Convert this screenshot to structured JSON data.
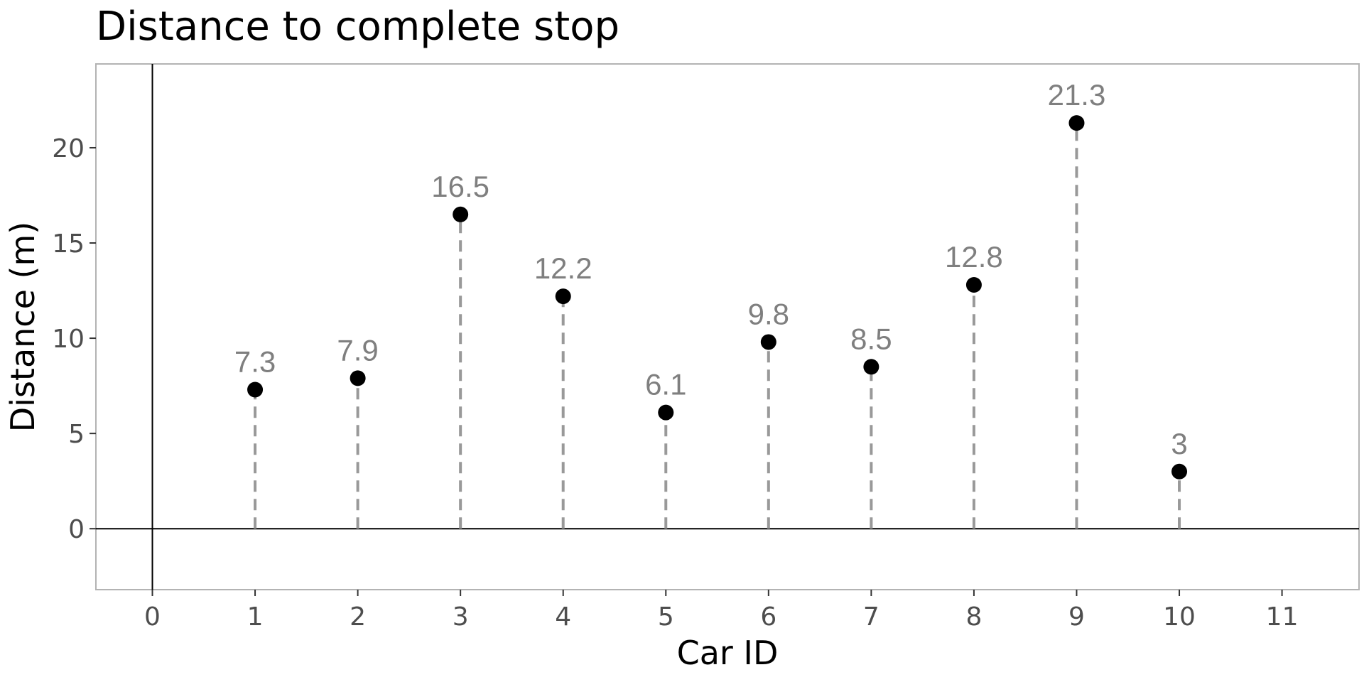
{
  "chart_data": {
    "type": "scatter",
    "title": "Distance to complete stop",
    "xlabel": "Car ID",
    "ylabel": "Distance (m)",
    "xlim": [
      -0.55,
      11.75
    ],
    "ylim": [
      -3.2,
      24.4
    ],
    "x_ticks": [
      0,
      1,
      2,
      3,
      4,
      5,
      6,
      7,
      8,
      9,
      10,
      11
    ],
    "y_ticks": [
      0,
      5,
      10,
      15,
      20
    ],
    "grid": false,
    "reference_lines": {
      "x": 0,
      "y": 0
    },
    "series": [
      {
        "x": [
          1,
          2,
          3,
          4,
          5,
          6,
          7,
          8,
          9,
          10
        ],
        "y": [
          7.3,
          7.9,
          16.5,
          12.2,
          6.1,
          9.8,
          8.5,
          12.8,
          21.3,
          3
        ],
        "labels": [
          "7.3",
          "7.9",
          "16.5",
          "12.2",
          "6.1",
          "9.8",
          "8.5",
          "12.8",
          "21.3",
          "3"
        ]
      }
    ],
    "colors": {
      "point": "#000000",
      "stem": "#999999",
      "label": "#7f7f7f",
      "frame": "#b3b3b3",
      "ref": "#000000"
    }
  }
}
